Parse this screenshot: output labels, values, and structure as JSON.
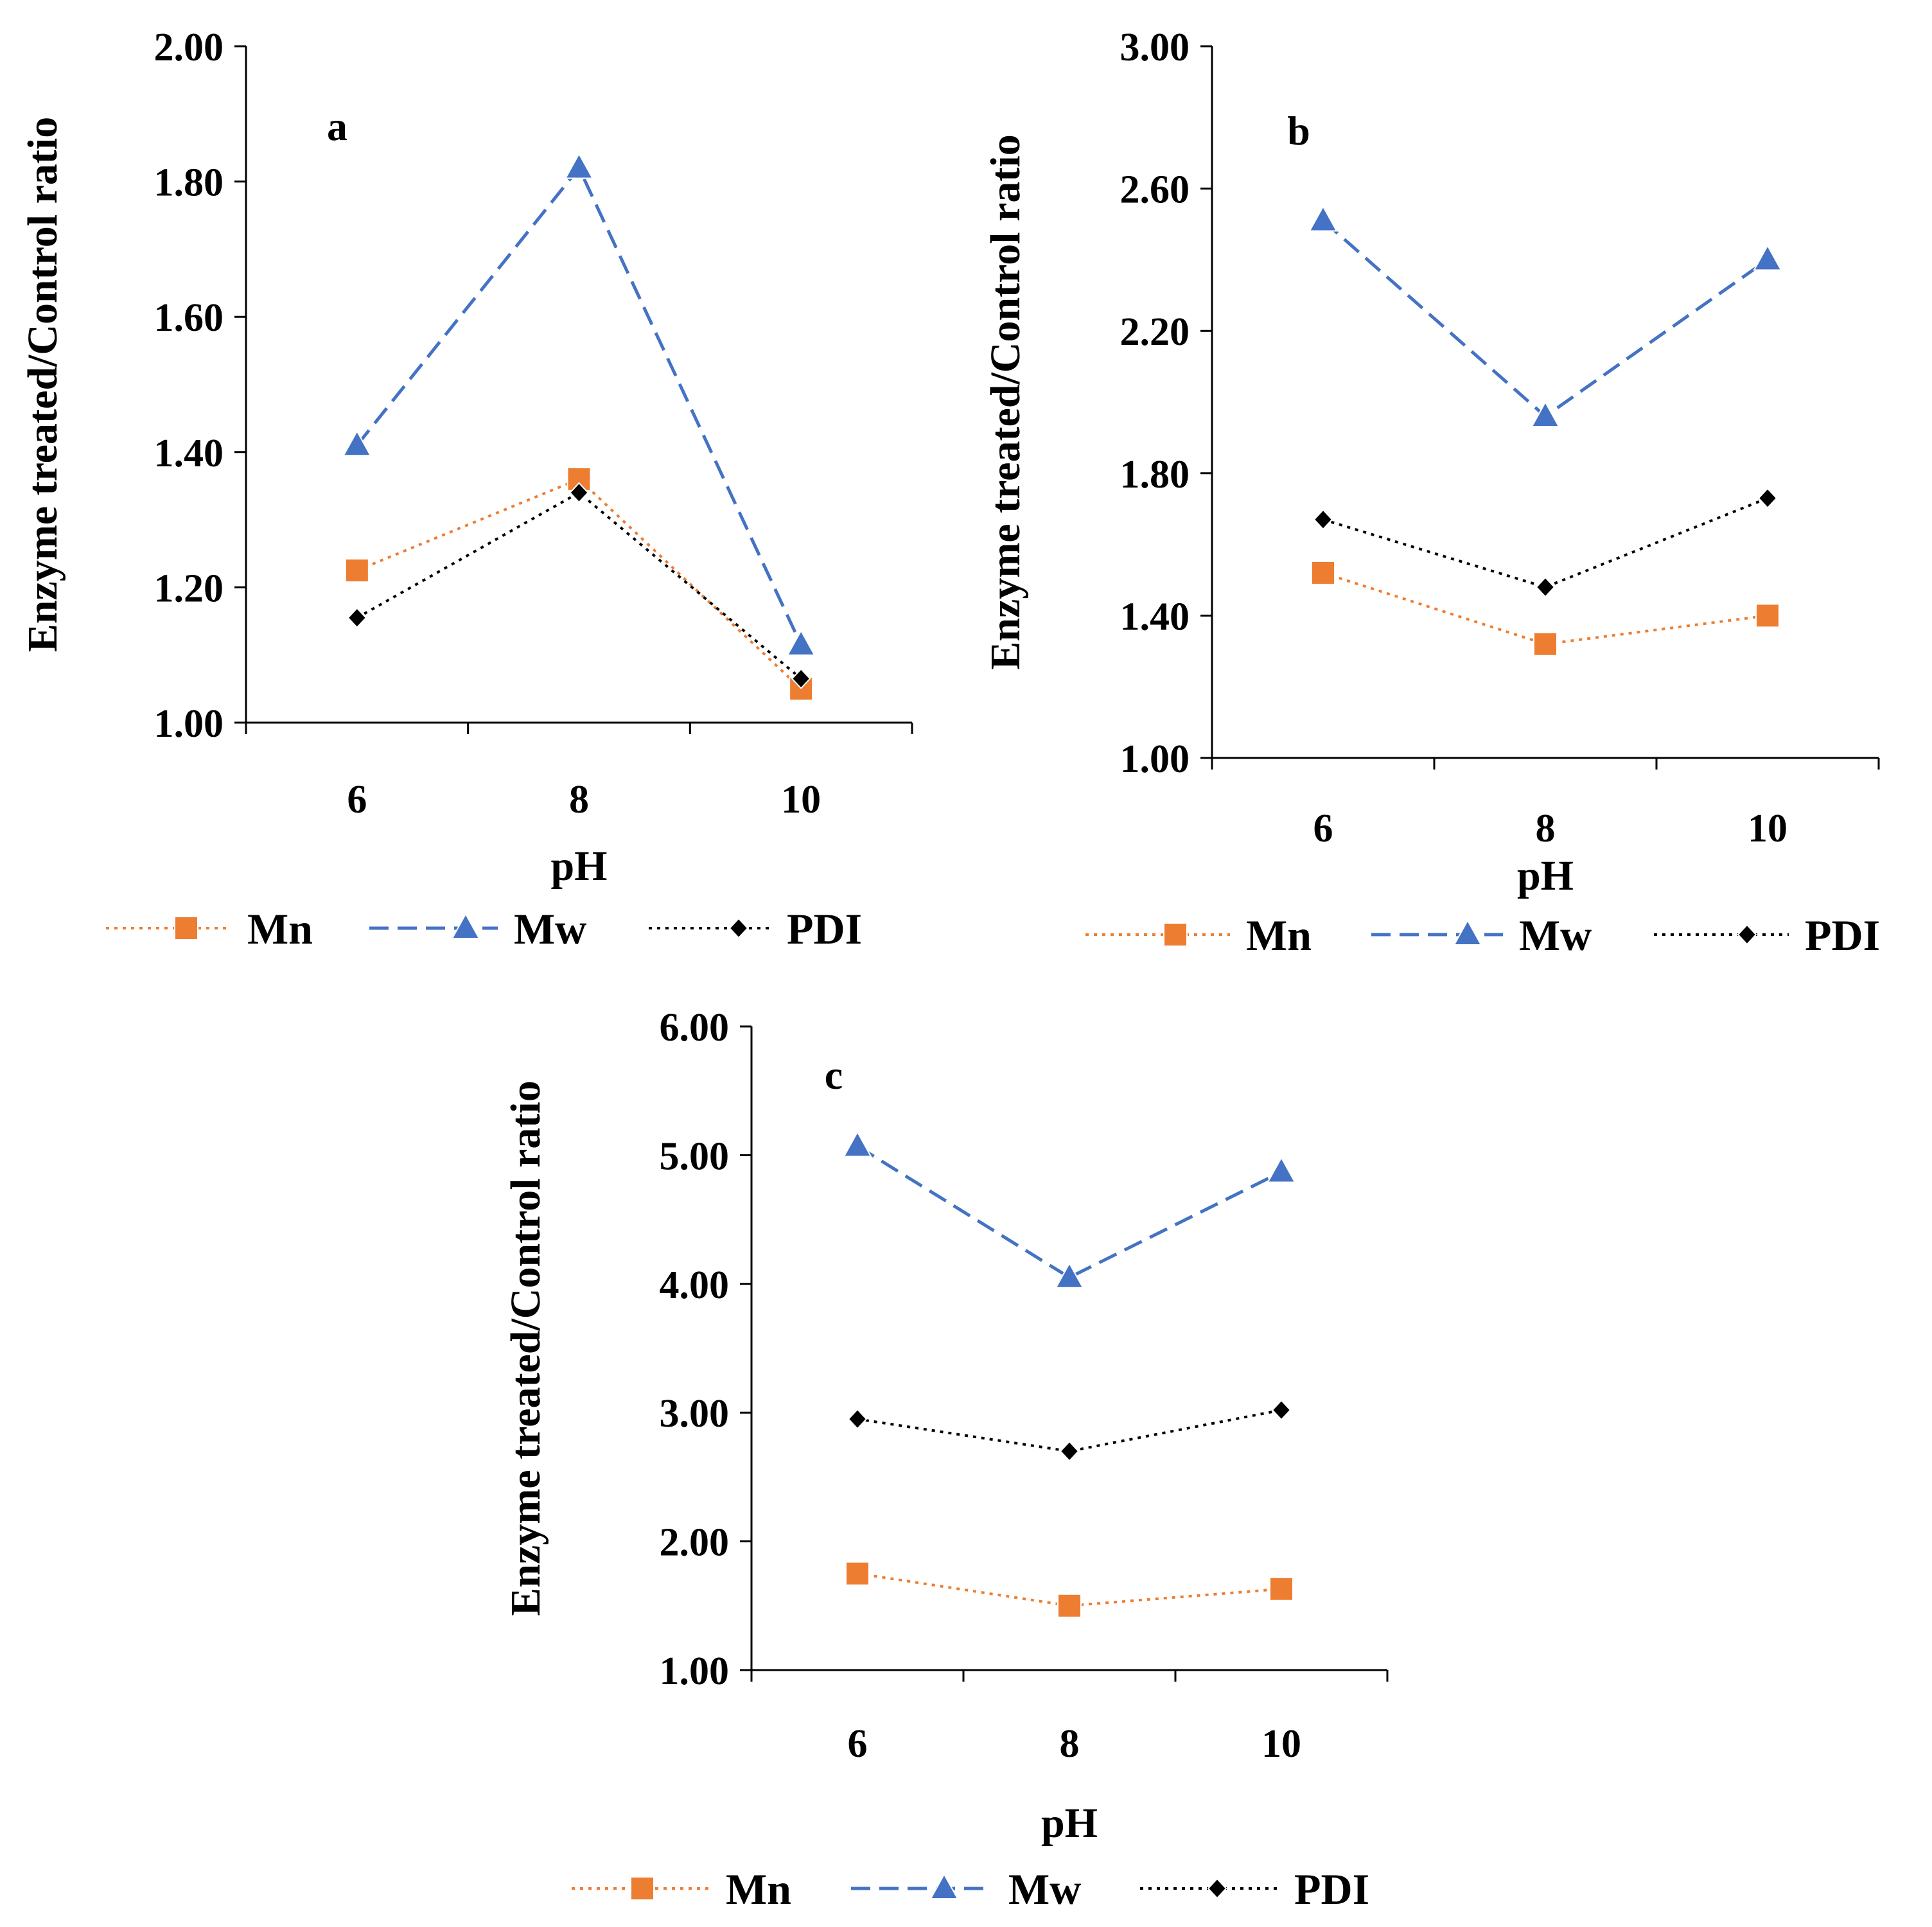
{
  "colors": {
    "Mn": "#ED7D31",
    "Mw": "#4472C4",
    "PDI": "#000000",
    "axis": "#000000"
  },
  "chart_data": [
    {
      "type": "line",
      "panel_label": "a",
      "xlabel": "pH",
      "ylabel": "Enzyme treated/Control ratio",
      "categories": [
        "6",
        "8",
        "10"
      ],
      "y_ticks": [
        "1.00",
        "1.20",
        "1.40",
        "1.60",
        "1.80",
        "2.00"
      ],
      "ylim": [
        1.0,
        2.0
      ],
      "legend_position": "bottom",
      "series": [
        {
          "name": "Mn",
          "values": [
            1.225,
            1.36,
            1.05
          ],
          "line": "dotted",
          "marker": "square"
        },
        {
          "name": "Mw",
          "values": [
            1.41,
            1.82,
            1.115
          ],
          "line": "dashed",
          "marker": "triangle"
        },
        {
          "name": "PDI",
          "values": [
            1.155,
            1.34,
            1.065
          ],
          "line": "dotted",
          "marker": "diamond"
        }
      ]
    },
    {
      "type": "line",
      "panel_label": "b",
      "xlabel": "pH",
      "ylabel": "Enzyme treated/Control ratio",
      "categories": [
        "6",
        "8",
        "10"
      ],
      "y_ticks": [
        "1.00",
        "1.40",
        "1.80",
        "2.20",
        "2.60",
        "3.00"
      ],
      "ylim": [
        1.0,
        3.0
      ],
      "legend_position": "bottom",
      "series": [
        {
          "name": "Mn",
          "values": [
            1.52,
            1.32,
            1.4
          ],
          "line": "dotted",
          "marker": "square"
        },
        {
          "name": "Mw",
          "values": [
            2.51,
            1.96,
            2.4
          ],
          "line": "dashed",
          "marker": "triangle"
        },
        {
          "name": "PDI",
          "values": [
            1.67,
            1.48,
            1.73
          ],
          "line": "dotted",
          "marker": "diamond"
        }
      ]
    },
    {
      "type": "line",
      "panel_label": "c",
      "xlabel": "pH",
      "ylabel": "Enzyme treated/Control ratio",
      "categories": [
        "6",
        "8",
        "10"
      ],
      "y_ticks": [
        "1.00",
        "2.00",
        "3.00",
        "4.00",
        "5.00",
        "6.00"
      ],
      "ylim": [
        1.0,
        6.0
      ],
      "legend_position": "bottom",
      "series": [
        {
          "name": "Mn",
          "values": [
            1.75,
            1.5,
            1.63
          ],
          "line": "dotted",
          "marker": "square"
        },
        {
          "name": "Mw",
          "values": [
            5.07,
            4.05,
            4.87
          ],
          "line": "dashed",
          "marker": "triangle"
        },
        {
          "name": "PDI",
          "values": [
            2.95,
            2.7,
            3.02
          ],
          "line": "dotted",
          "marker": "diamond"
        }
      ]
    }
  ]
}
